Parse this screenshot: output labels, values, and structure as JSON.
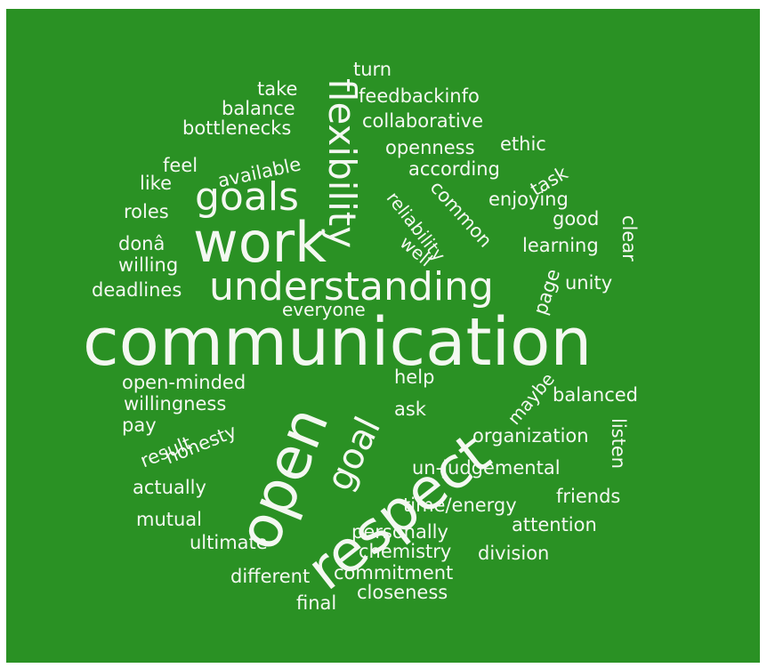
{
  "word_cloud": {
    "background_color": "#2a9124",
    "text_color": "#f4f8f1",
    "words": {
      "communication": "communication",
      "work": "work",
      "understanding": "understanding",
      "goals": "goals",
      "flexibility": "flexibility",
      "open": "open",
      "respect": "respect",
      "goal": "goal",
      "turn": "turn",
      "take": "take",
      "feedbackinfo": "feedbackinfo",
      "balance": "balance",
      "collaborative": "collaborative",
      "bottlenecks": "bottlenecks",
      "openness": "openness",
      "ethic": "ethic",
      "feel": "feel",
      "available": "available",
      "according": "according",
      "task": "task",
      "like": "like",
      "reliability": "reliability",
      "common": "common",
      "enjoying": "enjoying",
      "roles": "roles",
      "good": "good",
      "clear": "clear",
      "dona": "donâ",
      "well": "well",
      "learning": "learning",
      "willing": "willing",
      "page": "page",
      "unity": "unity",
      "deadlines": "deadlines",
      "everyone": "everyone",
      "open_minded": "open-minded",
      "help": "help",
      "maybe": "maybe",
      "balanced": "balanced",
      "willingness": "willingness",
      "ask": "ask",
      "pay": "pay",
      "honesty": "honesty",
      "result": "result",
      "organization": "organization",
      "un_judgemental": "un-judgemental",
      "listen": "listen",
      "actually": "actually",
      "time_energy": "time/energy",
      "friends": "friends",
      "mutual": "mutual",
      "attention": "attention",
      "personally": "personally",
      "ultimate": "ultimate",
      "chemistry": "chemistry",
      "division": "division",
      "different": "different",
      "commitment": "commitment",
      "final": "final",
      "closeness": "closeness"
    }
  }
}
